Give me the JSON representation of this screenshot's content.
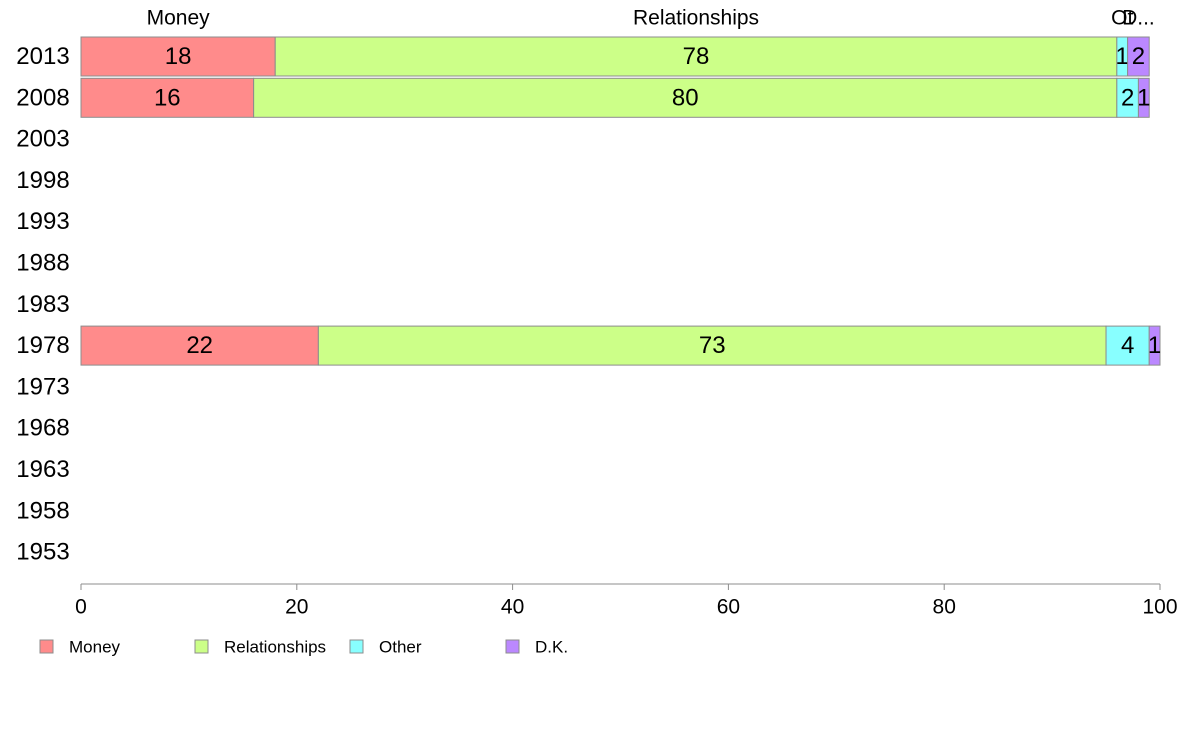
{
  "chart_data": {
    "type": "bar",
    "orientation": "horizontal",
    "stacked": true,
    "categories": [
      "2013",
      "2008",
      "2003",
      "1998",
      "1993",
      "1988",
      "1983",
      "1978",
      "1973",
      "1968",
      "1963",
      "1958",
      "1953"
    ],
    "series": [
      {
        "name": "Money",
        "color": "#ff8b8b",
        "values": [
          18,
          16,
          null,
          null,
          null,
          null,
          null,
          22,
          null,
          null,
          null,
          null,
          null
        ]
      },
      {
        "name": "Relationships",
        "color": "#ccff88",
        "values": [
          78,
          80,
          null,
          null,
          null,
          null,
          null,
          73,
          null,
          null,
          null,
          null,
          null
        ]
      },
      {
        "name": "Other",
        "color": "#88ffff",
        "values": [
          1,
          2,
          null,
          null,
          null,
          null,
          null,
          4,
          null,
          null,
          null,
          null,
          null
        ]
      },
      {
        "name": "D.K.",
        "color": "#bb88ff",
        "values": [
          2,
          1,
          null,
          null,
          null,
          null,
          null,
          1,
          null,
          null,
          null,
          null,
          null
        ]
      }
    ],
    "top_labels": [
      "Money",
      "Relationships",
      "Ot",
      "D..."
    ],
    "xlim": [
      0,
      100
    ],
    "xticks": [
      "0",
      "20",
      "40",
      "60",
      "80",
      "100"
    ],
    "xlabel": "",
    "ylabel": "",
    "grid": false,
    "legend_position": "bottom-left"
  }
}
